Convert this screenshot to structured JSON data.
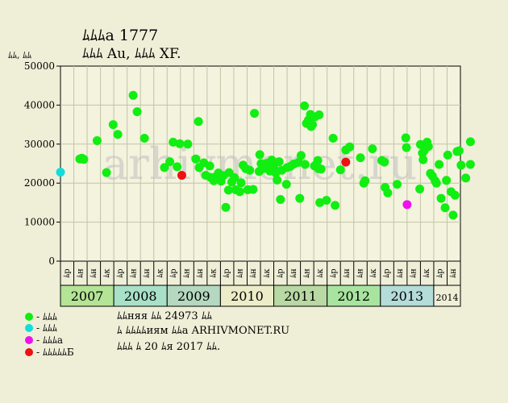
{
  "header": {
    "title": "ﾑﾑﾑа 1777",
    "subtitle": "ﾑﾑﾑ Au, ﾑﾑﾑ XF.",
    "unit": "ﾑﾑ, ﾑﾑ"
  },
  "chart_data": {
    "type": "scatter",
    "ylim": [
      0,
      50000
    ],
    "yticks": [
      0,
      10000,
      20000,
      30000,
      40000,
      50000
    ],
    "ytick_labels": [
      "0",
      "10000",
      "20000",
      "30000",
      "40000",
      "50000"
    ],
    "grid": true,
    "x_sublabels": [
      "ﾑр",
      "ﾑн",
      "ﾑн",
      "ﾑк",
      "ﾑр",
      "ﾑн",
      "ﾑн",
      "ﾑк",
      "ﾑр",
      "ﾑн",
      "ﾑн",
      "ﾑк",
      "ﾑр",
      "ﾑн",
      "ﾑн",
      "ﾑк",
      "ﾑр",
      "ﾑн",
      "ﾑн",
      "ﾑк",
      "ﾑр",
      "ﾑн",
      "ﾑн",
      "ﾑк",
      "ﾑр",
      "ﾑн",
      "ﾑн",
      "ﾑк",
      "ﾑр",
      "ﾑн"
    ],
    "years": [
      {
        "label": "2007",
        "start": 0,
        "span": 4,
        "color": "#b4e496"
      },
      {
        "label": "2008",
        "start": 4,
        "span": 4,
        "color": "#a8e0c8"
      },
      {
        "label": "2009",
        "start": 8,
        "span": 4,
        "color": "#b4d8c0"
      },
      {
        "label": "2010",
        "start": 12,
        "span": 4,
        "color": "#ececc8"
      },
      {
        "label": "2011",
        "start": 16,
        "span": 4,
        "color": "#b8d8a4"
      },
      {
        "label": "2012",
        "start": 20,
        "span": 4,
        "color": "#a8e4a0"
      },
      {
        "label": "2013",
        "start": 24,
        "span": 4,
        "color": "#b4dcd8"
      },
      {
        "label": "2014",
        "start": 28,
        "span": 2,
        "color": "#efefd8"
      }
    ],
    "series": [
      {
        "key": "green",
        "color": "#11ee11",
        "points": [
          [
            1.45,
            26200
          ],
          [
            1.6,
            26400
          ],
          [
            1.75,
            26100
          ],
          [
            2.75,
            30900
          ],
          [
            3.45,
            22700
          ],
          [
            3.95,
            35000
          ],
          [
            4.3,
            32500
          ],
          [
            5.45,
            42500
          ],
          [
            5.75,
            38300
          ],
          [
            6.3,
            31500
          ],
          [
            7.8,
            24000
          ],
          [
            8.2,
            25500
          ],
          [
            8.45,
            30500
          ],
          [
            8.75,
            24200
          ],
          [
            8.95,
            30100
          ],
          [
            9.55,
            30000
          ],
          [
            10.15,
            26200
          ],
          [
            10.35,
            35800
          ],
          [
            10.4,
            24000
          ],
          [
            10.75,
            25200
          ],
          [
            10.9,
            22000
          ],
          [
            11.2,
            24400
          ],
          [
            11.25,
            21500
          ],
          [
            11.5,
            20600
          ],
          [
            11.7,
            21800
          ],
          [
            11.85,
            22600
          ],
          [
            12.05,
            20500
          ],
          [
            12.2,
            21900
          ],
          [
            12.4,
            13800
          ],
          [
            12.6,
            18200
          ],
          [
            12.65,
            22700
          ],
          [
            12.85,
            20300
          ],
          [
            13.05,
            21400
          ],
          [
            13.15,
            18300
          ],
          [
            13.45,
            17800
          ],
          [
            13.55,
            20100
          ],
          [
            13.7,
            24600
          ],
          [
            13.9,
            23700
          ],
          [
            14.05,
            18300
          ],
          [
            14.2,
            23300
          ],
          [
            14.45,
            18400
          ],
          [
            14.55,
            37900
          ],
          [
            14.9,
            23000
          ],
          [
            14.95,
            27300
          ],
          [
            15.05,
            25000
          ],
          [
            15.2,
            23700
          ],
          [
            15.5,
            25100
          ],
          [
            15.7,
            23100
          ],
          [
            15.85,
            25900
          ],
          [
            16.0,
            24000
          ],
          [
            16.15,
            22600
          ],
          [
            16.25,
            20800
          ],
          [
            16.4,
            25500
          ],
          [
            16.5,
            15800
          ],
          [
            16.6,
            23300
          ],
          [
            16.95,
            19700
          ],
          [
            17.0,
            24000
          ],
          [
            17.25,
            24300
          ],
          [
            17.5,
            24900
          ],
          [
            17.85,
            25300
          ],
          [
            17.95,
            16100
          ],
          [
            18.05,
            27100
          ],
          [
            18.3,
            39800
          ],
          [
            18.35,
            24800
          ],
          [
            18.45,
            35300
          ],
          [
            18.6,
            36200
          ],
          [
            18.75,
            37600
          ],
          [
            18.8,
            34500
          ],
          [
            18.9,
            35000
          ],
          [
            19.05,
            24400
          ],
          [
            19.1,
            37000
          ],
          [
            19.2,
            24800
          ],
          [
            19.3,
            25800
          ],
          [
            19.35,
            23700
          ],
          [
            19.4,
            37500
          ],
          [
            19.45,
            15000
          ],
          [
            19.55,
            23600
          ],
          [
            19.95,
            15600
          ],
          [
            20.45,
            31500
          ],
          [
            20.6,
            14300
          ],
          [
            21.0,
            23400
          ],
          [
            21.4,
            28500
          ],
          [
            21.7,
            29300
          ],
          [
            22.5,
            26500
          ],
          [
            22.75,
            20000
          ],
          [
            22.85,
            20600
          ],
          [
            23.4,
            28800
          ],
          [
            24.1,
            25800
          ],
          [
            24.3,
            25400
          ],
          [
            24.35,
            18900
          ],
          [
            24.55,
            17500
          ],
          [
            25.25,
            19700
          ],
          [
            25.9,
            31600
          ],
          [
            25.95,
            29100
          ],
          [
            26.95,
            18500
          ],
          [
            27.0,
            29900
          ],
          [
            27.15,
            27700
          ],
          [
            27.2,
            26000
          ],
          [
            27.3,
            28400
          ],
          [
            27.45,
            29800
          ],
          [
            27.5,
            30500
          ],
          [
            27.6,
            29400
          ],
          [
            27.75,
            22500
          ],
          [
            27.9,
            21800
          ],
          [
            28.1,
            20600
          ],
          [
            28.2,
            20000
          ],
          [
            28.4,
            24800
          ],
          [
            28.55,
            16100
          ],
          [
            28.85,
            13700
          ],
          [
            28.95,
            20700
          ],
          [
            29.05,
            27200
          ],
          [
            29.3,
            17800
          ],
          [
            29.45,
            11800
          ],
          [
            29.6,
            16900
          ],
          [
            29.75,
            28100
          ],
          [
            29.9,
            28300
          ],
          [
            30.05,
            24600
          ],
          [
            30.4,
            21300
          ],
          [
            30.75,
            24800
          ],
          [
            30.75,
            30600
          ]
        ]
      },
      {
        "key": "cyan",
        "color": "#11dddd",
        "points": [
          [
            0.0,
            22800
          ]
        ]
      },
      {
        "key": "magenta",
        "color": "#ee11ee",
        "points": [
          [
            26.0,
            14500
          ]
        ]
      },
      {
        "key": "red",
        "color": "#ee1111",
        "points": [
          [
            9.1,
            22000
          ],
          [
            21.4,
            25400
          ]
        ]
      }
    ]
  },
  "legend": [
    {
      "color": "#11ee11",
      "label": "- ﾑﾑﾑ"
    },
    {
      "color": "#11dddd",
      "label": "- ﾑﾑﾑ"
    },
    {
      "color": "#ee11ee",
      "label": "- ﾑﾑﾑа"
    },
    {
      "color": "#ee1111",
      "label": "- ﾑﾑﾑﾑﾑБ"
    }
  ],
  "footer": {
    "line1": "ﾑﾑняя ﾑﾑ 24973 ﾑﾑ",
    "line2": "ﾑ ﾑﾑﾑﾑиям ﾑﾑа ARHIVMONET.RU",
    "line3": "ﾑﾑﾑ ﾑ 20 ﾑя 2017 ﾑﾑ."
  },
  "watermark": "arhivmonet.ru"
}
